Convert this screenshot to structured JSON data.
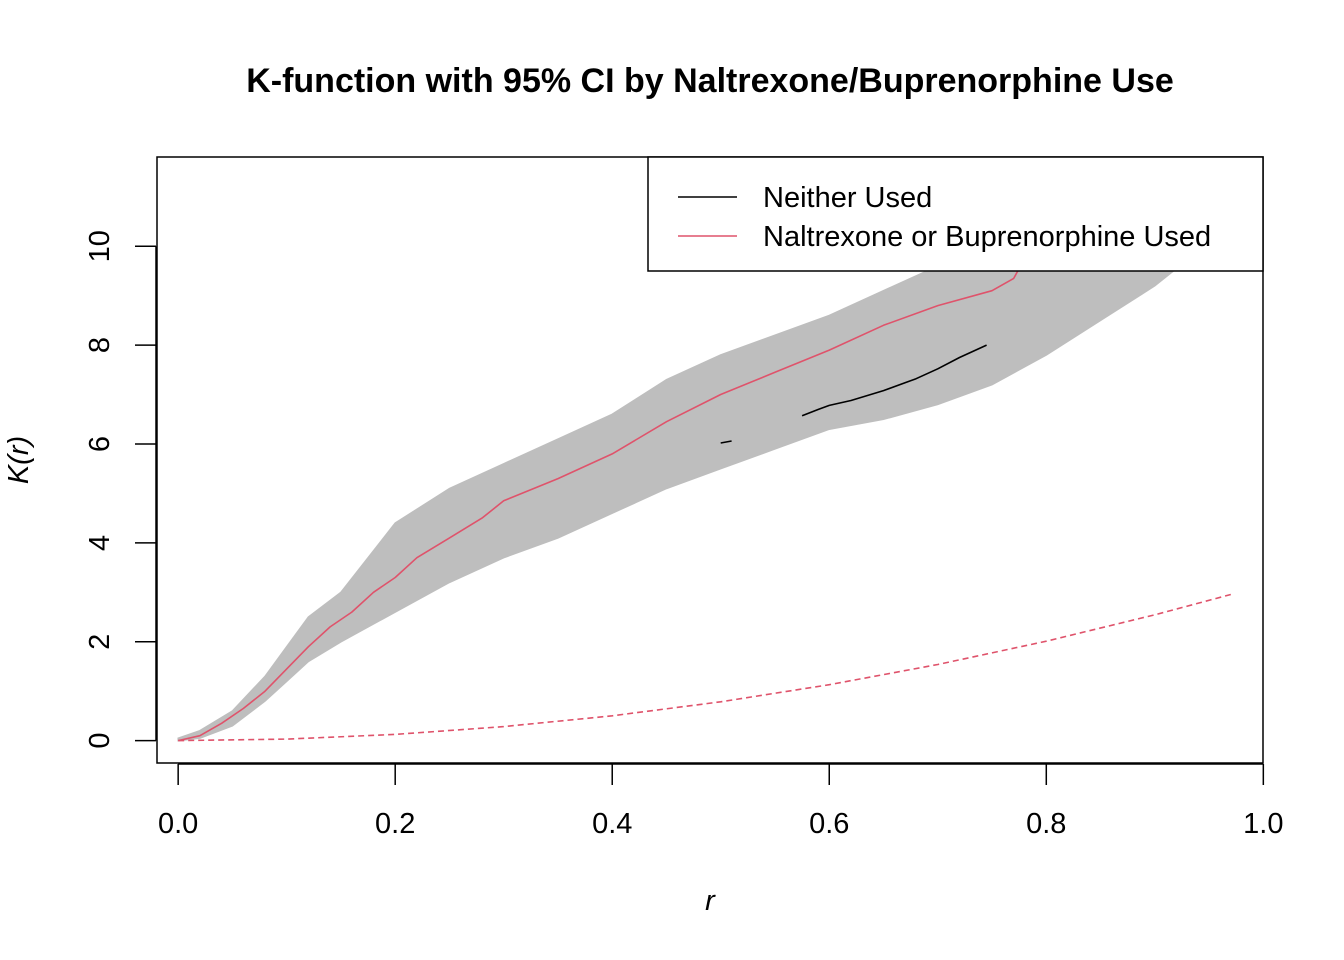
{
  "chart_data": {
    "type": "line",
    "title": "K-function with 95% CI by Naltrexone/Buprenorphine Use",
    "xlabel": "r",
    "ylabel": "K(r)",
    "xlim": [
      -0.0195,
      0.9997
    ],
    "ylim": [
      -0.4524,
      11.8047
    ],
    "xticks": [
      0.0,
      0.2,
      0.4,
      0.6,
      0.8,
      1.0
    ],
    "xtick_labels": [
      "0.0",
      "0.2",
      "0.4",
      "0.6",
      "0.8",
      "1.0"
    ],
    "yticks": [
      0,
      2,
      4,
      6,
      8,
      10
    ],
    "ytick_labels": [
      "0",
      "2",
      "4",
      "6",
      "8",
      "10"
    ],
    "grid": false,
    "legend": {
      "position": "top-right",
      "entries": [
        {
          "label": "Neither Used",
          "color": "#000000",
          "style": "solid"
        },
        {
          "label": "Naltrexone or Buprenorphine Used",
          "color": "#DF536B",
          "style": "solid"
        }
      ]
    },
    "ci_band": {
      "name": "95% CI",
      "color": "#BEBEBE",
      "x": [
        0.0,
        0.02,
        0.05,
        0.08,
        0.1,
        0.12,
        0.15,
        0.2,
        0.25,
        0.3,
        0.35,
        0.4,
        0.45,
        0.5,
        0.55,
        0.6,
        0.65,
        0.7,
        0.75,
        0.8,
        0.85,
        0.9,
        0.94
      ],
      "lower": [
        0.0,
        0.05,
        0.3,
        0.8,
        1.2,
        1.6,
        2.0,
        2.6,
        3.2,
        3.7,
        4.1,
        4.6,
        5.1,
        5.5,
        5.9,
        6.3,
        6.5,
        6.8,
        7.2,
        7.8,
        8.5,
        9.2,
        9.9
      ],
      "upper": [
        0.05,
        0.2,
        0.6,
        1.3,
        1.9,
        2.5,
        3.0,
        4.4,
        5.1,
        5.6,
        6.1,
        6.6,
        7.3,
        7.8,
        8.2,
        8.6,
        9.1,
        9.6,
        10.1,
        10.5,
        11.0,
        11.5,
        11.9
      ]
    },
    "series": [
      {
        "name": "Neither Used",
        "color": "#000000",
        "style": "solid",
        "segments": [
          {
            "x": [
              0.5,
              0.51
            ],
            "y": [
              6.02,
              6.06
            ]
          },
          {
            "x": [
              0.575,
              0.59,
              0.6,
              0.62,
              0.65,
              0.68,
              0.7,
              0.72,
              0.745
            ],
            "y": [
              6.57,
              6.7,
              6.78,
              6.88,
              7.08,
              7.32,
              7.52,
              7.75,
              8.0
            ]
          }
        ]
      },
      {
        "name": "Naltrexone or Buprenorphine Used",
        "color": "#DF536B",
        "style": "solid",
        "x": [
          0.0,
          0.02,
          0.04,
          0.06,
          0.08,
          0.1,
          0.12,
          0.14,
          0.16,
          0.18,
          0.2,
          0.22,
          0.25,
          0.28,
          0.3,
          0.35,
          0.4,
          0.45,
          0.5,
          0.55,
          0.6,
          0.65,
          0.7,
          0.75,
          0.77,
          0.78
        ],
        "y": [
          0.0,
          0.1,
          0.35,
          0.65,
          1.0,
          1.45,
          1.9,
          2.3,
          2.6,
          3.0,
          3.3,
          3.7,
          4.1,
          4.5,
          4.85,
          5.3,
          5.8,
          6.45,
          7.0,
          7.45,
          7.9,
          8.4,
          8.8,
          9.1,
          9.35,
          9.75
        ]
      },
      {
        "name": "",
        "color": "#DF536B",
        "style": "dashed",
        "x": [
          0.0,
          0.1,
          0.2,
          0.3,
          0.4,
          0.5,
          0.6,
          0.7,
          0.8,
          0.9,
          0.97
        ],
        "y": [
          0.0,
          0.031,
          0.126,
          0.283,
          0.503,
          0.785,
          1.131,
          1.539,
          2.011,
          2.545,
          2.956
        ]
      }
    ]
  }
}
